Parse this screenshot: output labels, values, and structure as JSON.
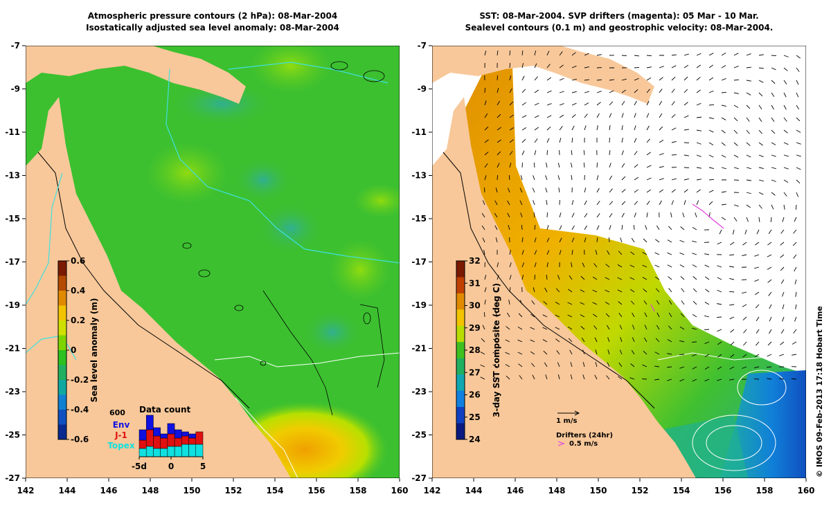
{
  "left_panel": {
    "title_line1": "Atmospheric pressure contours (2 hPa): 08-Mar-2004",
    "title_line2": "Isostatically adjusted sea level anomaly: 08-Mar-2004",
    "colorbar": {
      "label": "Sea level anomaly (m)",
      "ticks": [
        "0.6",
        "0.4",
        "0.2",
        "0",
        "-0.2",
        "-0.4",
        "-0.6"
      ],
      "colors": [
        "#7a1a00",
        "#b34a00",
        "#e08a00",
        "#f2c400",
        "#cfe000",
        "#7ed400",
        "#2cc020",
        "#20b060",
        "#10a8a0",
        "#1080d0",
        "#1050c0",
        "#0a2a90"
      ]
    },
    "data_count": {
      "title": "Data count",
      "max_label": "600",
      "legend": [
        {
          "label": "Env",
          "color": "#1010e0"
        },
        {
          "label": "J-1",
          "color": "#e01010"
        },
        {
          "label": "Topex",
          "color": "#10e0e0"
        }
      ],
      "xticks": [
        "-5d",
        "0",
        "5"
      ],
      "bars": [
        {
          "topex": 0.2,
          "j1": 0.2,
          "env": 0.25
        },
        {
          "topex": 0.25,
          "j1": 0.4,
          "env": 0.35
        },
        {
          "topex": 0.2,
          "j1": 0.3,
          "env": 0.2
        },
        {
          "topex": 0.2,
          "j1": 0.25,
          "env": 0.1
        },
        {
          "topex": 0.25,
          "j1": 0.3,
          "env": 0.25
        },
        {
          "topex": 0.25,
          "j1": 0.2,
          "env": 0.2
        },
        {
          "topex": 0.3,
          "j1": 0.2,
          "env": 0.1
        },
        {
          "topex": 0.3,
          "j1": 0.15,
          "env": 0.1
        },
        {
          "topex": 0.3,
          "j1": 0.3,
          "env": 0.0
        }
      ]
    }
  },
  "right_panel": {
    "title_line1": "SST: 08-Mar-2004. SVP drifters (magenta): 05 Mar - 10 Mar.",
    "title_line2": "Sealevel contours (0.1 m) and geostrophic velocity: 08-Mar-2004.",
    "colorbar": {
      "label": "3-day SST composite (deg C)",
      "ticks": [
        "32",
        "31",
        "30",
        "29",
        "28",
        "27",
        "26",
        "25",
        "24"
      ],
      "colors": [
        "#7a1a00",
        "#c04000",
        "#e08a00",
        "#f2c400",
        "#b8dc00",
        "#40c020",
        "#20b060",
        "#10a8b0",
        "#1080e0",
        "#1040c0",
        "#0a1a80"
      ]
    },
    "velocity_legend": "1 m/s",
    "drifters_legend_title": "Drifters (24hr)",
    "drifters_legend_value": "0.5 m/s"
  },
  "axes": {
    "lon_ticks": [
      "142",
      "144",
      "146",
      "148",
      "150",
      "152",
      "154",
      "156",
      "158",
      "160"
    ],
    "lat_ticks": [
      "-7",
      "-9",
      "-11",
      "-13",
      "-15",
      "-17",
      "-19",
      "-21",
      "-23",
      "-25",
      "-27"
    ]
  },
  "credit": "© IMOS 09-Feb-2013 17:18 Hobart Time",
  "colors": {
    "land": "#f8c89a",
    "ocean_green": "#3cc030",
    "ocean_light": "#5cd030"
  }
}
